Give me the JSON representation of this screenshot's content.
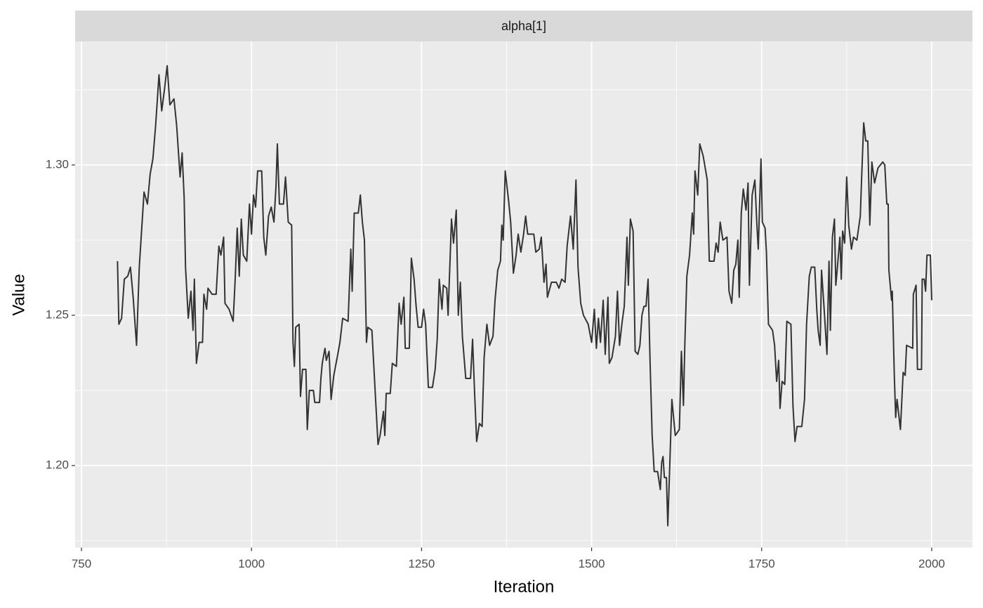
{
  "chart_data": {
    "type": "line",
    "strip_title": "alpha[1]",
    "x_label": "Iteration",
    "y_label": "Value",
    "xlim": [
      740.7,
      2059.9
    ],
    "ylim": [
      1.1727,
      1.3411
    ],
    "xticks": [
      750,
      1000,
      1250,
      1500,
      1750,
      2000
    ],
    "yticks": [
      {
        "value": 1.2,
        "label": "1.20"
      },
      {
        "value": 1.25,
        "label": "1.25"
      },
      {
        "value": 1.3,
        "label": "1.30"
      }
    ],
    "minor_xticks": [
      875,
      1125,
      1375,
      1625,
      1875
    ],
    "minor_yticks": [
      1.175,
      1.225,
      1.275,
      1.325
    ],
    "grid": true,
    "series": [
      {
        "color": "#333333",
        "x": [
          803,
          805,
          809,
          813,
          818,
          822,
          826,
          831,
          835,
          842,
          847,
          851,
          855,
          859,
          864,
          868,
          872,
          876,
          880,
          886,
          890,
          895,
          898,
          901,
          903,
          907,
          911,
          914,
          916,
          919,
          923,
          928,
          930,
          934,
          936,
          942,
          948,
          952,
          955,
          959,
          961,
          967,
          973,
          976,
          979,
          982,
          985,
          988,
          993,
          997,
          1000,
          1003,
          1006,
          1009,
          1015,
          1018,
          1021,
          1025,
          1029,
          1033,
          1036,
          1038,
          1041,
          1047,
          1050,
          1054,
          1059,
          1061,
          1063,
          1065,
          1070,
          1072,
          1075,
          1080,
          1082,
          1085,
          1091,
          1093,
          1100,
          1102,
          1104,
          1108,
          1110,
          1114,
          1117,
          1121,
          1126,
          1130,
          1134,
          1142,
          1146,
          1148,
          1151,
          1157,
          1160,
          1163,
          1166,
          1169,
          1171,
          1177,
          1181,
          1186,
          1189,
          1194,
          1196,
          1198,
          1204,
          1207,
          1213,
          1217,
          1220,
          1224,
          1226,
          1232,
          1235,
          1239,
          1242,
          1245,
          1250,
          1253,
          1256,
          1260,
          1266,
          1270,
          1273,
          1276,
          1280,
          1282,
          1287,
          1289,
          1294,
          1297,
          1301,
          1304,
          1307,
          1310,
          1315,
          1322,
          1325,
          1328,
          1331,
          1335,
          1339,
          1342,
          1346,
          1350,
          1355,
          1358,
          1362,
          1366,
          1368,
          1370,
          1373,
          1378,
          1381,
          1385,
          1389,
          1392,
          1396,
          1400,
          1403,
          1406,
          1415,
          1418,
          1423,
          1426,
          1430,
          1433,
          1435,
          1441,
          1448,
          1452,
          1456,
          1461,
          1464,
          1469,
          1473,
          1477,
          1480,
          1484,
          1488,
          1495,
          1500,
          1504,
          1507,
          1510,
          1513,
          1517,
          1520,
          1524,
          1526,
          1530,
          1535,
          1538,
          1541,
          1545,
          1548,
          1552,
          1554,
          1557,
          1561,
          1564,
          1568,
          1571,
          1574,
          1577,
          1580,
          1583,
          1586,
          1589,
          1592,
          1597,
          1601,
          1603,
          1605,
          1607,
          1610,
          1612,
          1618,
          1623,
          1629,
          1632,
          1635,
          1637,
          1640,
          1644,
          1648,
          1650,
          1652,
          1656,
          1659,
          1664,
          1670,
          1673,
          1680,
          1683,
          1686,
          1689,
          1693,
          1699,
          1702,
          1706,
          1709,
          1712,
          1715,
          1717,
          1720,
          1723,
          1727,
          1730,
          1732,
          1736,
          1740,
          1743,
          1745,
          1749,
          1751,
          1755,
          1757,
          1760,
          1766,
          1769,
          1772,
          1775,
          1777,
          1780,
          1784,
          1787,
          1793,
          1796,
          1799,
          1802,
          1809,
          1813,
          1816,
          1820,
          1823,
          1828,
          1831,
          1833,
          1836,
          1838,
          1841,
          1846,
          1849,
          1851,
          1854,
          1857,
          1859,
          1861,
          1865,
          1867,
          1869,
          1872,
          1875,
          1878,
          1882,
          1885,
          1890,
          1895,
          1897,
          1900,
          1903,
          1906,
          1909,
          1912,
          1916,
          1921,
          1928,
          1931,
          1934,
          1936,
          1937,
          1941,
          1942,
          1945,
          1947,
          1949,
          1954,
          1958,
          1961,
          1963,
          1972,
          1973,
          1977,
          1979,
          1985,
          1986,
          1989,
          1991,
          1993,
          1998,
          2000
        ],
        "values": [
          1.268,
          1.247,
          1.249,
          1.262,
          1.263,
          1.266,
          1.256,
          1.24,
          1.266,
          1.291,
          1.287,
          1.297,
          1.302,
          1.313,
          1.33,
          1.318,
          1.325,
          1.333,
          1.32,
          1.322,
          1.313,
          1.296,
          1.304,
          1.289,
          1.266,
          1.249,
          1.258,
          1.245,
          1.262,
          1.234,
          1.241,
          1.241,
          1.257,
          1.252,
          1.259,
          1.257,
          1.257,
          1.273,
          1.27,
          1.276,
          1.254,
          1.252,
          1.248,
          1.262,
          1.279,
          1.263,
          1.282,
          1.27,
          1.268,
          1.287,
          1.277,
          1.29,
          1.286,
          1.298,
          1.298,
          1.276,
          1.27,
          1.283,
          1.286,
          1.281,
          1.293,
          1.307,
          1.287,
          1.287,
          1.296,
          1.281,
          1.28,
          1.241,
          1.233,
          1.246,
          1.247,
          1.223,
          1.232,
          1.232,
          1.212,
          1.225,
          1.225,
          1.221,
          1.221,
          1.229,
          1.234,
          1.239,
          1.235,
          1.238,
          1.222,
          1.23,
          1.236,
          1.241,
          1.249,
          1.248,
          1.272,
          1.258,
          1.284,
          1.284,
          1.29,
          1.281,
          1.275,
          1.241,
          1.246,
          1.245,
          1.228,
          1.207,
          1.21,
          1.218,
          1.21,
          1.224,
          1.224,
          1.234,
          1.233,
          1.254,
          1.247,
          1.256,
          1.239,
          1.239,
          1.269,
          1.262,
          1.253,
          1.246,
          1.246,
          1.252,
          1.247,
          1.226,
          1.226,
          1.232,
          1.242,
          1.262,
          1.252,
          1.26,
          1.259,
          1.25,
          1.282,
          1.274,
          1.285,
          1.25,
          1.261,
          1.243,
          1.229,
          1.229,
          1.242,
          1.224,
          1.208,
          1.214,
          1.213,
          1.236,
          1.247,
          1.24,
          1.243,
          1.255,
          1.265,
          1.268,
          1.28,
          1.275,
          1.298,
          1.288,
          1.281,
          1.264,
          1.27,
          1.277,
          1.271,
          1.277,
          1.283,
          1.277,
          1.277,
          1.271,
          1.272,
          1.276,
          1.261,
          1.267,
          1.256,
          1.261,
          1.261,
          1.259,
          1.262,
          1.261,
          1.273,
          1.283,
          1.272,
          1.295,
          1.266,
          1.254,
          1.25,
          1.247,
          1.241,
          1.252,
          1.239,
          1.249,
          1.241,
          1.255,
          1.237,
          1.256,
          1.234,
          1.236,
          1.243,
          1.258,
          1.24,
          1.248,
          1.253,
          1.276,
          1.26,
          1.282,
          1.278,
          1.238,
          1.237,
          1.24,
          1.25,
          1.253,
          1.253,
          1.262,
          1.234,
          1.21,
          1.198,
          1.198,
          1.192,
          1.201,
          1.203,
          1.196,
          1.196,
          1.18,
          1.222,
          1.21,
          1.212,
          1.238,
          1.22,
          1.24,
          1.263,
          1.27,
          1.284,
          1.277,
          1.298,
          1.29,
          1.307,
          1.303,
          1.295,
          1.268,
          1.268,
          1.274,
          1.271,
          1.281,
          1.275,
          1.276,
          1.258,
          1.254,
          1.265,
          1.267,
          1.275,
          1.256,
          1.284,
          1.292,
          1.285,
          1.294,
          1.26,
          1.29,
          1.295,
          1.28,
          1.272,
          1.302,
          1.281,
          1.279,
          1.271,
          1.247,
          1.245,
          1.24,
          1.228,
          1.235,
          1.219,
          1.228,
          1.227,
          1.248,
          1.247,
          1.22,
          1.208,
          1.213,
          1.213,
          1.222,
          1.247,
          1.263,
          1.266,
          1.266,
          1.252,
          1.245,
          1.24,
          1.265,
          1.255,
          1.237,
          1.268,
          1.245,
          1.276,
          1.282,
          1.26,
          1.265,
          1.276,
          1.262,
          1.278,
          1.274,
          1.296,
          1.28,
          1.272,
          1.276,
          1.275,
          1.283,
          1.296,
          1.314,
          1.308,
          1.308,
          1.28,
          1.301,
          1.294,
          1.299,
          1.301,
          1.3,
          1.287,
          1.287,
          1.265,
          1.255,
          1.258,
          1.23,
          1.216,
          1.222,
          1.212,
          1.231,
          1.23,
          1.24,
          1.239,
          1.257,
          1.26,
          1.232,
          1.232,
          1.262,
          1.262,
          1.258,
          1.27,
          1.27,
          1.255
        ]
      }
    ]
  }
}
